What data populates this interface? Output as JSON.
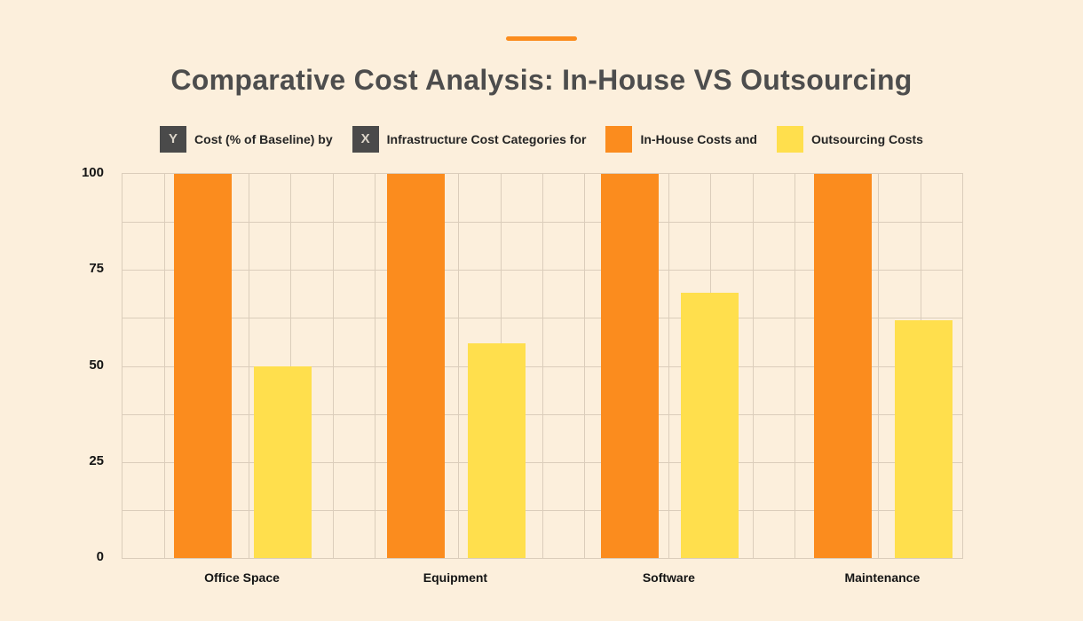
{
  "title": "Comparative Cost Analysis: In-House VS Outsourcing",
  "legend": {
    "y_badge": "Y",
    "y_label": "Cost (% of Baseline) by",
    "x_badge": "X",
    "x_label": "Infrastructure Cost Categories for",
    "series": [
      {
        "label": "In-House Costs and",
        "color": "#FB8C1E"
      },
      {
        "label": "Outsourcing Costs",
        "color": "#FFDF4D"
      }
    ]
  },
  "chart_data": {
    "type": "bar",
    "title": "Comparative Cost Analysis: In-House VS Outsourcing",
    "categories": [
      "Office Space",
      "Equipment",
      "Software",
      "Maintenance"
    ],
    "series": [
      {
        "name": "In-House Costs",
        "color": "#FB8C1E",
        "values": [
          100,
          100,
          100,
          100
        ]
      },
      {
        "name": "Outsourcing Costs",
        "color": "#FFDF4D",
        "values": [
          50,
          56,
          69,
          62
        ]
      }
    ],
    "ylabel": "Cost (% of Baseline)",
    "xlabel": "Infrastructure Cost Categories",
    "ylim": [
      0,
      100
    ],
    "yticks": [
      0,
      25,
      50,
      75,
      100
    ],
    "y_minor_step": 12.5,
    "grid": true,
    "legend_position": "top"
  },
  "colors": {
    "background": "#FCEFDC",
    "accent": "#FB8C1E",
    "grid": "#DBCDBB",
    "title_text": "#4D4D4D",
    "badge_bg": "#4A4A4A",
    "badge_text": "#DDD6CA",
    "text": "#141414"
  }
}
